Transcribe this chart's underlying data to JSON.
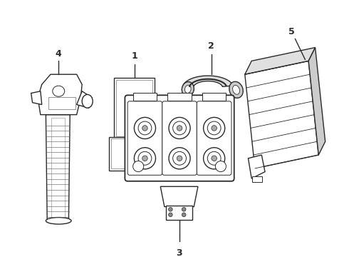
{
  "background_color": "#ffffff",
  "line_color": "#2a2a2a",
  "line_width": 1.0,
  "fig_w": 4.9,
  "fig_h": 3.6,
  "dpi": 100
}
